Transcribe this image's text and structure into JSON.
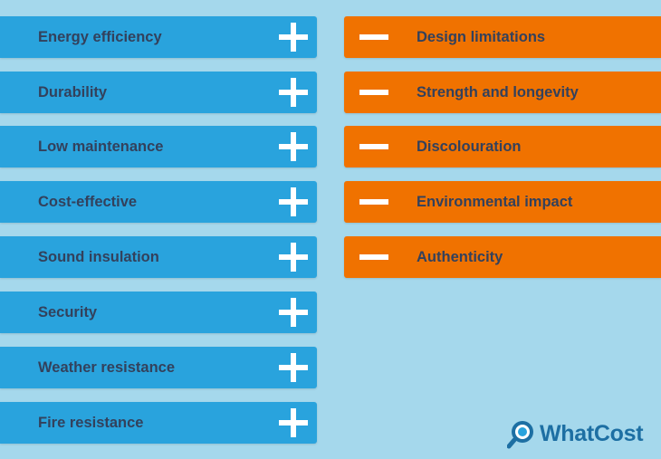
{
  "pros": [
    "Energy efficiency",
    "Durability",
    "Low maintenance",
    "Cost-effective",
    "Sound insulation",
    "Security",
    "Weather resistance",
    "Fire resistance"
  ],
  "cons": [
    "Design limitations",
    "Strength and longevity",
    "Discolouration",
    "Environmental impact",
    "Authenticity"
  ],
  "logo": {
    "text": "WhatCost",
    "icon": "magnifier-icon"
  },
  "colors": {
    "background": "#a5d8ec",
    "pro": "#29a3dd",
    "con": "#f07200",
    "text": "#33415c",
    "logo": "#1d6fa3"
  }
}
